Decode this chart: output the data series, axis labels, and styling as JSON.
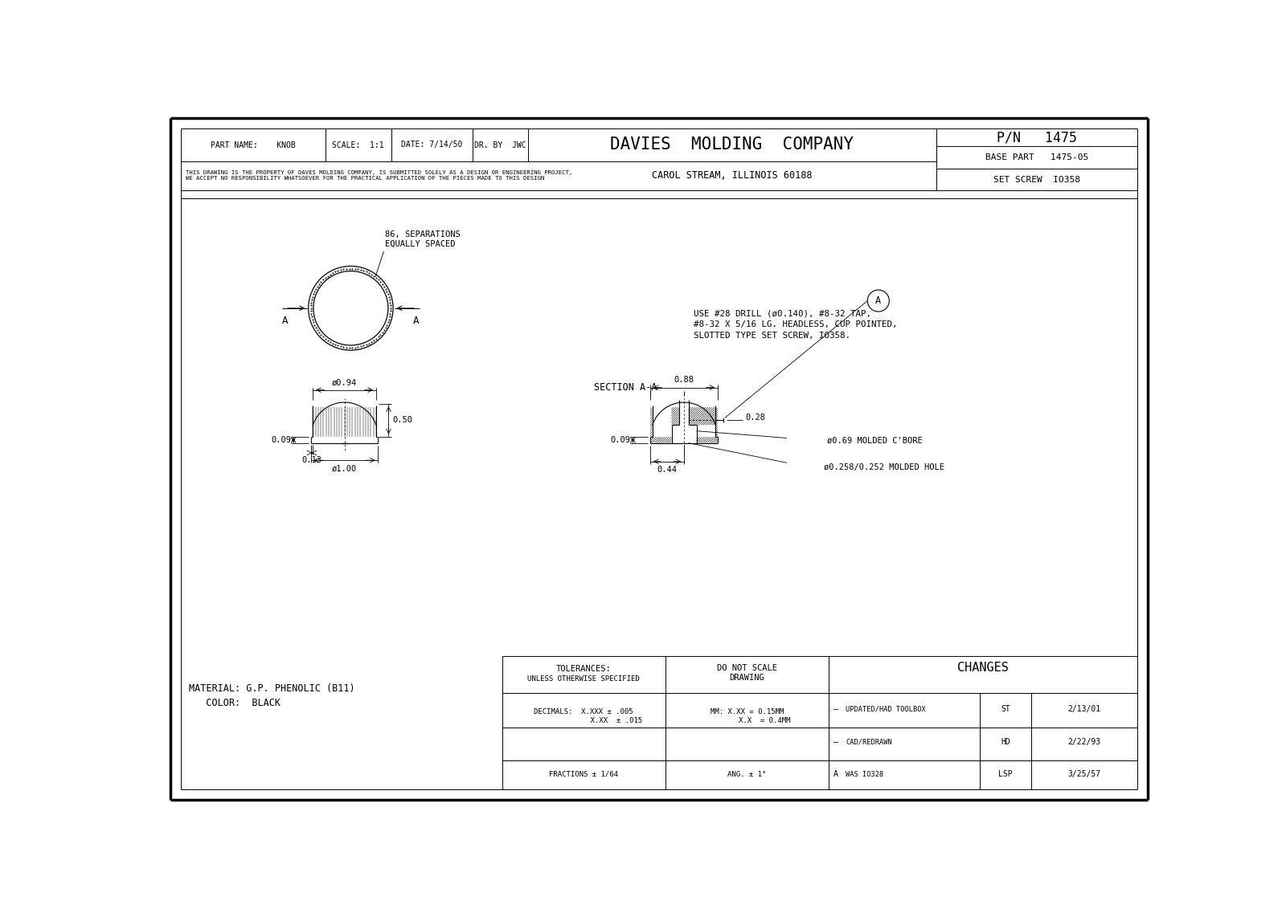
{
  "bg_color": "#ffffff",
  "line_color": "#000000",
  "company": "DAVIES  MOLDING  COMPANY",
  "company_sub": "CAROL STREAM, ILLINOIS 60188",
  "pn": "P/N   1475",
  "base_part": "BASE PART   1475-05",
  "set_screw": "SET SCREW  IO358",
  "separations_note_line1": "86, SEPARATIONS",
  "separations_note_line2": "EQUALLY SPACED",
  "section_label": "SECTION A-A",
  "note_text": "USE #28 DRILL (ø0.140), #8-32 TAP,\n#8-32 X 5/16 LG. HEADLESS, CUP POINTED,\nSLOTTED TYPE SET SCREW, IO358.",
  "dim_094": "ø0.94",
  "dim_100": "ø1.00",
  "dim_050": "0.50",
  "dim_009": "0.09",
  "dim_013": "0.13",
  "dim_088": "0.88",
  "dim_044": "0.44",
  "dim_009b": "0.09",
  "dim_028": "0.28",
  "dim_069": "ø0.69 MOLDED C'BORE",
  "dim_0258": "ø0.258/0.252 MOLDED HOLE",
  "tol_head": "TOLERANCES:",
  "tol_sub": "UNLESS OTHERWISE SPECIFIED",
  "do_not_scale": "DO NOT SCALE\nDRAWING",
  "frac": "FRACTIONS ± 1/64",
  "ang": "ANG. ± 1°",
  "changes": "CHANGES",
  "change1": "UPDATED/HAD TOOLBOX",
  "change1_by": "ST",
  "change1_date": "2/13/01",
  "change2": "CAD/REDRAWN",
  "change2_by": "HD",
  "change2_date": "2/22/93",
  "change3": "WAS IO328",
  "change3_by": "LSP",
  "change3_date": "3/25/57",
  "change3_rev": "A",
  "material": "MATERIAL: G.P. PHENOLIC (B11)",
  "color_text": "   COLOR:  BLACK"
}
